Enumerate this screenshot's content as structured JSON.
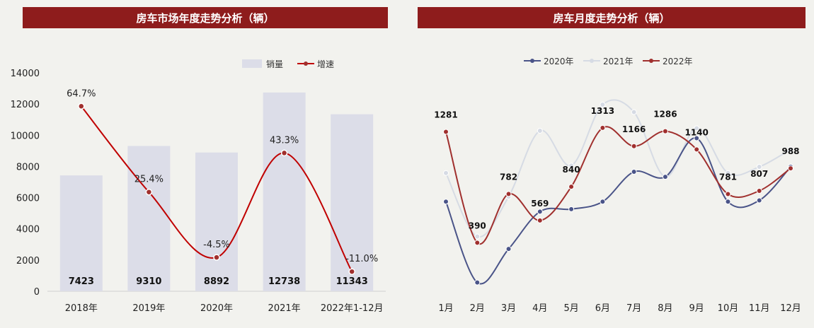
{
  "chart_data": [
    {
      "type": "bar",
      "title": "房车市场年度走势分析（辆）",
      "categories": [
        "2018年",
        "2019年",
        "2020年",
        "2021年",
        "2022年1-12月"
      ],
      "series": [
        {
          "name": "销量",
          "type": "bar",
          "values": [
            7423,
            9310,
            8892,
            12738,
            11343
          ],
          "color": "#dcdde8"
        },
        {
          "name": "增速",
          "type": "line",
          "values": [
            64.7,
            25.4,
            -4.5,
            43.3,
            -11.0
          ],
          "labels": [
            "64.7%",
            "25.4%",
            "-4.5%",
            "43.3%",
            "-11.0%"
          ],
          "color": "#c00000"
        }
      ],
      "yticks": [
        "0",
        "2000",
        "4000",
        "6000",
        "8000",
        "10000",
        "12000",
        "14000"
      ],
      "ylim": [
        0,
        14000
      ],
      "growth_lim": [
        -20,
        80
      ],
      "legend": "top-right"
    },
    {
      "type": "line",
      "title": "房车月度走势分析（辆）",
      "categories": [
        "1月",
        "2月",
        "3月",
        "4月",
        "5月",
        "6月",
        "7月",
        "8月",
        "9月",
        "10月",
        "11月",
        "12月"
      ],
      "ylim": [
        0,
        2000
      ],
      "series": [
        {
          "name": "2020年",
          "values": [
            720,
            70,
            340,
            640,
            660,
            720,
            960,
            920,
            1230,
            720,
            730,
            1000
          ],
          "color": "#4a5488"
        },
        {
          "name": "2021年",
          "values": [
            950,
            440,
            760,
            1290,
            1010,
            1500,
            1440,
            920,
            1310,
            950,
            1000,
            1140
          ],
          "color": "#d6dbe4"
        },
        {
          "name": "2022年",
          "values": [
            1281,
            390,
            782,
            569,
            840,
            1313,
            1166,
            1286,
            1140,
            781,
            807,
            988
          ],
          "color": "#a0302e"
        }
      ],
      "labels_2022": [
        "1281",
        "390",
        "782",
        "569",
        "840",
        "1313",
        "1166",
        "1286",
        "1140",
        "781",
        "807",
        "988"
      ],
      "legend": "top-center"
    }
  ]
}
